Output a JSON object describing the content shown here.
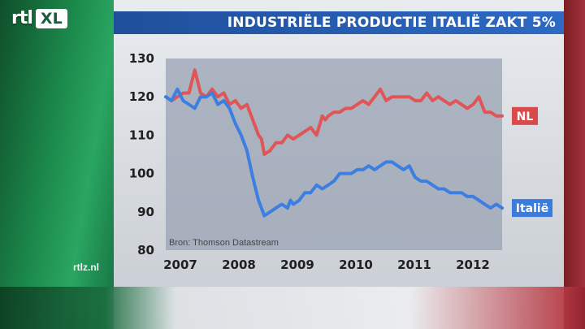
{
  "header": {
    "logo_text": "rtl",
    "logo_badge": "XL",
    "title": "INDUSTRIËLE PRODUCTIE ITALIË ZAKT 5%"
  },
  "footer": {
    "site": "rtlz.nl"
  },
  "chart_data": {
    "type": "line",
    "title": "INDUSTRIËLE PRODUCTIE ITALIË ZAKT 5%",
    "source": "Bron: Thomson Datastream",
    "xlabel": "",
    "ylabel": "",
    "xlim": [
      2007.0,
      2012.8
    ],
    "ylim": [
      80,
      130
    ],
    "y_ticks": [
      130,
      120,
      110,
      100,
      90,
      80
    ],
    "x_ticks": [
      "2007",
      "2008",
      "2009",
      "2010",
      "2011",
      "2012"
    ],
    "grid": false,
    "series": [
      {
        "name": "NL",
        "color": "#e05555",
        "label_color": "#d94b4b",
        "x": [
          2007.0,
          2007.1,
          2007.2,
          2007.3,
          2007.4,
          2007.5,
          2007.55,
          2007.6,
          2007.7,
          2007.8,
          2007.9,
          2008.0,
          2008.1,
          2008.2,
          2008.3,
          2008.4,
          2008.5,
          2008.6,
          2008.65,
          2008.7,
          2008.8,
          2008.9,
          2009.0,
          2009.1,
          2009.2,
          2009.3,
          2009.4,
          2009.5,
          2009.6,
          2009.7,
          2009.75,
          2009.8,
          2009.9,
          2010.0,
          2010.1,
          2010.2,
          2010.3,
          2010.4,
          2010.5,
          2010.6,
          2010.7,
          2010.8,
          2010.9,
          2011.0,
          2011.1,
          2011.2,
          2011.3,
          2011.4,
          2011.5,
          2011.6,
          2011.7,
          2011.8,
          2011.9,
          2012.0,
          2012.1,
          2012.2,
          2012.3,
          2012.4,
          2012.5,
          2012.6,
          2012.7,
          2012.8
        ],
        "y": [
          120,
          119,
          120,
          121,
          121,
          127,
          124,
          121,
          120,
          122,
          120,
          121,
          118,
          119,
          117,
          118,
          114,
          110,
          109,
          105,
          106,
          108,
          108,
          110,
          109,
          110,
          111,
          112,
          110,
          115,
          114,
          115,
          116,
          116,
          117,
          117,
          118,
          119,
          118,
          120,
          122,
          119,
          120,
          120,
          120,
          120,
          119,
          119,
          121,
          119,
          120,
          119,
          118,
          119,
          118,
          117,
          118,
          120,
          116,
          116,
          115,
          115
        ]
      },
      {
        "name": "Italië",
        "color": "#3d7fe0",
        "label_color": "#3a7be0",
        "x": [
          2007.0,
          2007.1,
          2007.2,
          2007.3,
          2007.4,
          2007.5,
          2007.6,
          2007.7,
          2007.8,
          2007.9,
          2008.0,
          2008.1,
          2008.2,
          2008.3,
          2008.4,
          2008.5,
          2008.6,
          2008.7,
          2008.8,
          2008.9,
          2009.0,
          2009.1,
          2009.15,
          2009.2,
          2009.3,
          2009.4,
          2009.5,
          2009.6,
          2009.7,
          2009.8,
          2009.9,
          2010.0,
          2010.1,
          2010.2,
          2010.3,
          2010.4,
          2010.5,
          2010.6,
          2010.7,
          2010.8,
          2010.9,
          2011.0,
          2011.1,
          2011.2,
          2011.3,
          2011.4,
          2011.5,
          2011.6,
          2011.7,
          2011.8,
          2011.9,
          2012.0,
          2012.1,
          2012.2,
          2012.3,
          2012.4,
          2012.5,
          2012.6,
          2012.7,
          2012.8
        ],
        "y": [
          120,
          119,
          122,
          119,
          118,
          117,
          120,
          120,
          121,
          118,
          119,
          117,
          113,
          110,
          106,
          99,
          93,
          89,
          90,
          91,
          92,
          91,
          93,
          92,
          93,
          95,
          95,
          97,
          96,
          97,
          98,
          100,
          100,
          100,
          101,
          101,
          102,
          101,
          102,
          103,
          103,
          102,
          101,
          102,
          99,
          98,
          98,
          97,
          96,
          96,
          95,
          95,
          95,
          94,
          94,
          93,
          92,
          91,
          92,
          91
        ]
      }
    ]
  },
  "colors": {
    "plot_bg": "#9aa3b4",
    "title_bar": "#2a62b8",
    "nl_label_bg": "#d94b4b",
    "italie_label_bg": "#3a7be0"
  }
}
